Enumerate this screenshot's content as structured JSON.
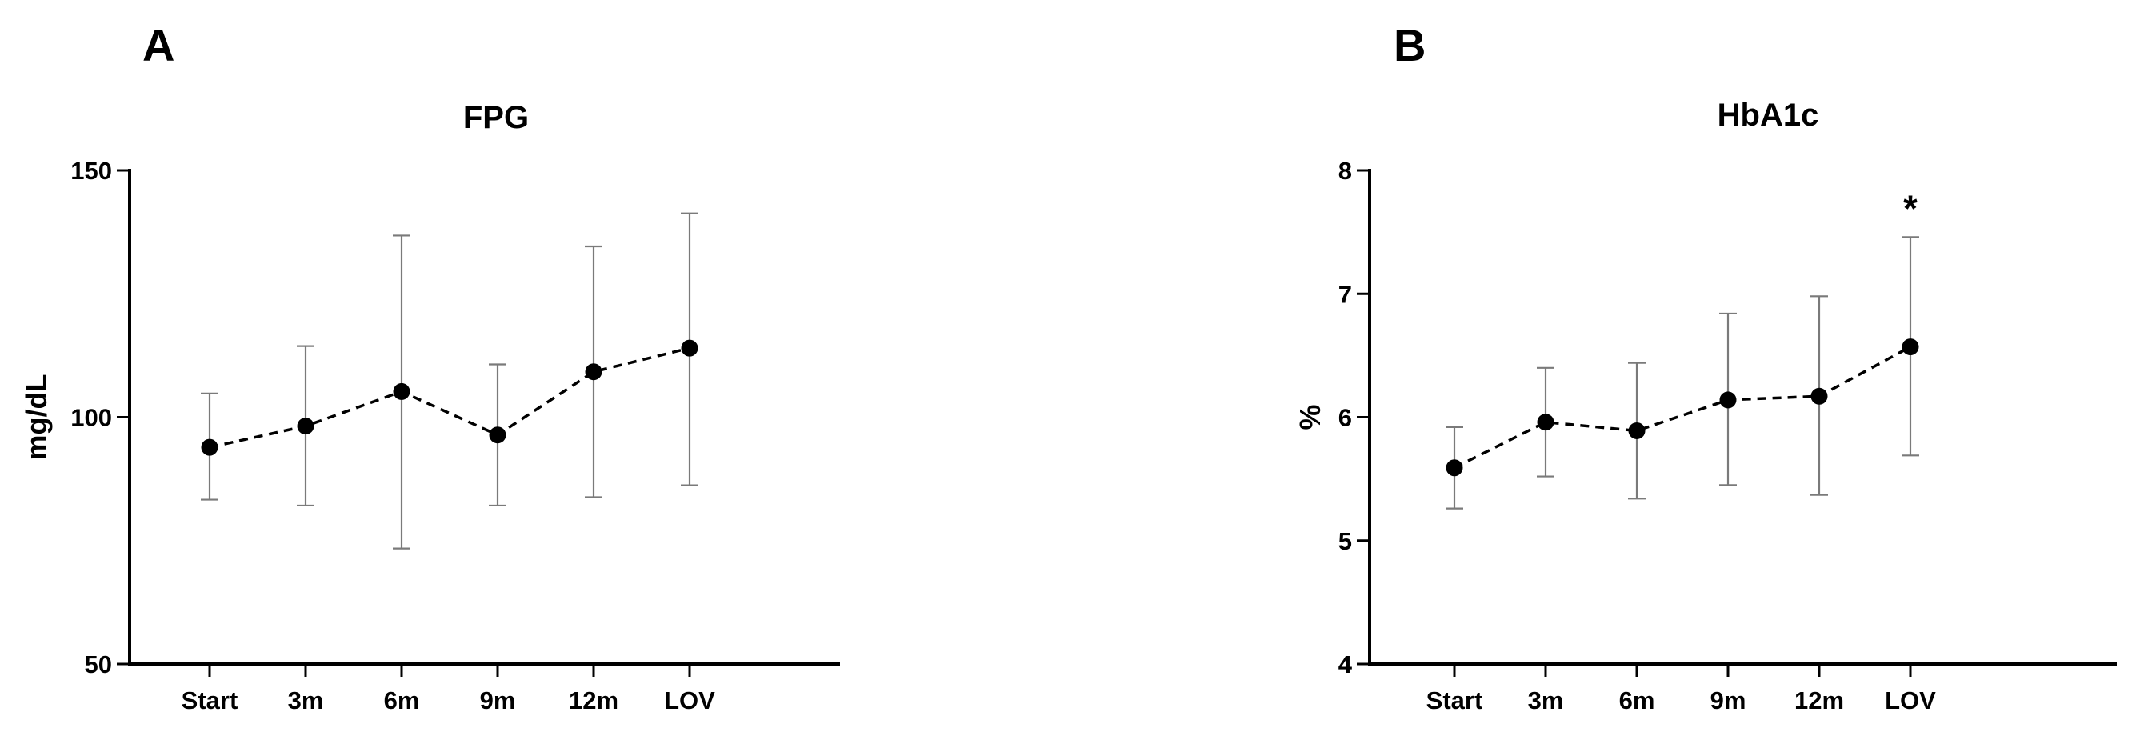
{
  "chart_data": [
    {
      "type": "line",
      "panel_label": "A",
      "title": "FPG",
      "xlabel": "",
      "ylabel": "mg/dL",
      "categories": [
        "Start",
        "3m",
        "6m",
        "9m",
        "12m",
        "LOV"
      ],
      "ylim": [
        50,
        150
      ],
      "yticks": [
        "50",
        "100",
        "150"
      ],
      "grid": false,
      "legend": "none",
      "series": [
        {
          "values": [
            93.9,
            98.2,
            105.2,
            96.4,
            109.2,
            114.0
          ],
          "error_low": [
            83.3,
            82.1,
            73.4,
            82.1,
            83.8,
            86.2
          ],
          "error_high": [
            104.8,
            114.4,
            136.8,
            110.7,
            134.6,
            141.3
          ],
          "line_style": "dashed",
          "marker": "circle",
          "color": "#000000"
        }
      ],
      "annotations": []
    },
    {
      "type": "line",
      "panel_label": "B",
      "title": "HbA1c",
      "xlabel": "",
      "ylabel": "%",
      "categories": [
        "Start",
        "3m",
        "6m",
        "9m",
        "12m",
        "LOV"
      ],
      "ylim": [
        4,
        8
      ],
      "yticks": [
        "4",
        "5",
        "6",
        "7",
        "8"
      ],
      "grid": false,
      "legend": "none",
      "series": [
        {
          "values": [
            5.59,
            5.96,
            5.89,
            6.14,
            6.17,
            6.57
          ],
          "error_low": [
            5.26,
            5.52,
            5.34,
            5.45,
            5.37,
            5.69
          ],
          "error_high": [
            5.92,
            6.4,
            6.44,
            6.84,
            6.98,
            7.46
          ],
          "line_style": "dashed",
          "marker": "circle",
          "color": "#000000"
        }
      ],
      "annotations": [
        {
          "category": "LOV",
          "text": "*"
        }
      ]
    }
  ]
}
